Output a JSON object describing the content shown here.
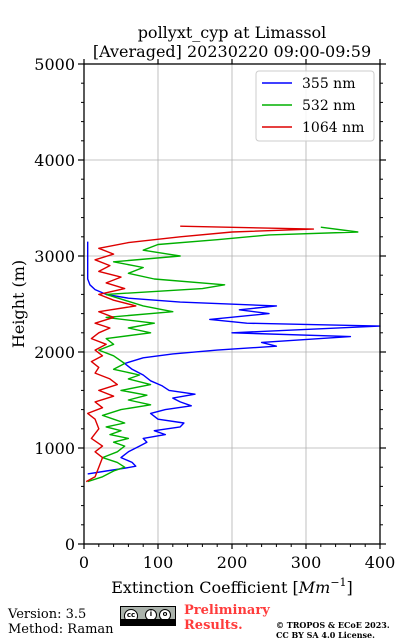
{
  "chart_data": {
    "type": "line",
    "title": "pollyxt_cyp at Limassol",
    "subtitle": "[Averaged] 20230220 09:00-09:59",
    "xlabel": "Extinction Coefficient [",
    "xlabel_unit": "Mm",
    "xlabel_exp": "−1",
    "xlabel_close": "]",
    "ylabel": "Height (m)",
    "xlim": [
      0,
      400
    ],
    "ylim": [
      0,
      5000
    ],
    "x_ticks": [
      "0",
      "100",
      "200",
      "300",
      "400"
    ],
    "y_ticks": [
      "0",
      "1000",
      "2000",
      "3000",
      "4000",
      "5000"
    ],
    "grid": true,
    "legend_position": "top-right",
    "series": [
      {
        "name": "355 nm",
        "color": "#0000ff",
        "points": [
          [
            5,
            730
          ],
          [
            30,
            760
          ],
          [
            55,
            790
          ],
          [
            70,
            810
          ],
          [
            65,
            850
          ],
          [
            50,
            900
          ],
          [
            60,
            960
          ],
          [
            75,
            1020
          ],
          [
            85,
            1060
          ],
          [
            80,
            1100
          ],
          [
            110,
            1140
          ],
          [
            95,
            1180
          ],
          [
            130,
            1220
          ],
          [
            135,
            1260
          ],
          [
            100,
            1300
          ],
          [
            90,
            1360
          ],
          [
            110,
            1400
          ],
          [
            145,
            1440
          ],
          [
            130,
            1480
          ],
          [
            120,
            1520
          ],
          [
            150,
            1560
          ],
          [
            115,
            1600
          ],
          [
            105,
            1650
          ],
          [
            90,
            1700
          ],
          [
            80,
            1760
          ],
          [
            65,
            1820
          ],
          [
            55,
            1880
          ],
          [
            80,
            1940
          ],
          [
            120,
            1980
          ],
          [
            180,
            2020
          ],
          [
            260,
            2060
          ],
          [
            240,
            2100
          ],
          [
            360,
            2160
          ],
          [
            200,
            2200
          ],
          [
            400,
            2270
          ],
          [
            220,
            2300
          ],
          [
            170,
            2340
          ],
          [
            250,
            2400
          ],
          [
            210,
            2440
          ],
          [
            260,
            2480
          ],
          [
            130,
            2520
          ],
          [
            60,
            2560
          ],
          [
            30,
            2600
          ],
          [
            15,
            2650
          ],
          [
            8,
            2700
          ],
          [
            5,
            2760
          ],
          [
            5,
            2850
          ],
          [
            5,
            2950
          ],
          [
            5,
            3050
          ],
          [
            5,
            3150
          ]
        ]
      },
      {
        "name": "532 nm",
        "color": "#00b000",
        "points": [
          [
            5,
            650
          ],
          [
            25,
            700
          ],
          [
            40,
            760
          ],
          [
            55,
            800
          ],
          [
            45,
            850
          ],
          [
            25,
            900
          ],
          [
            45,
            960
          ],
          [
            55,
            1020
          ],
          [
            40,
            1060
          ],
          [
            60,
            1100
          ],
          [
            35,
            1140
          ],
          [
            50,
            1180
          ],
          [
            30,
            1220
          ],
          [
            55,
            1260
          ],
          [
            40,
            1300
          ],
          [
            25,
            1340
          ],
          [
            50,
            1400
          ],
          [
            90,
            1450
          ],
          [
            60,
            1500
          ],
          [
            85,
            1550
          ],
          [
            50,
            1600
          ],
          [
            90,
            1660
          ],
          [
            60,
            1720
          ],
          [
            75,
            1760
          ],
          [
            40,
            1820
          ],
          [
            55,
            1880
          ],
          [
            40,
            1960
          ],
          [
            20,
            2020
          ],
          [
            40,
            2080
          ],
          [
            30,
            2140
          ],
          [
            90,
            2200
          ],
          [
            60,
            2250
          ],
          [
            95,
            2300
          ],
          [
            30,
            2360
          ],
          [
            120,
            2420
          ],
          [
            80,
            2480
          ],
          [
            55,
            2540
          ],
          [
            30,
            2600
          ],
          [
            160,
            2660
          ],
          [
            190,
            2700
          ],
          [
            95,
            2760
          ],
          [
            60,
            2820
          ],
          [
            80,
            2880
          ],
          [
            40,
            2940
          ],
          [
            130,
            3000
          ],
          [
            80,
            3060
          ],
          [
            100,
            3120
          ],
          [
            180,
            3170
          ],
          [
            250,
            3220
          ],
          [
            370,
            3250
          ],
          [
            320,
            3300
          ]
        ]
      },
      {
        "name": "1064 nm",
        "color": "#dd0000",
        "points": [
          [
            3,
            650
          ],
          [
            15,
            700
          ],
          [
            20,
            800
          ],
          [
            25,
            900
          ],
          [
            15,
            960
          ],
          [
            25,
            1020
          ],
          [
            10,
            1100
          ],
          [
            20,
            1200
          ],
          [
            15,
            1300
          ],
          [
            5,
            1360
          ],
          [
            25,
            1420
          ],
          [
            15,
            1480
          ],
          [
            40,
            1540
          ],
          [
            20,
            1600
          ],
          [
            45,
            1660
          ],
          [
            35,
            1720
          ],
          [
            15,
            1780
          ],
          [
            20,
            1840
          ],
          [
            10,
            1900
          ],
          [
            25,
            1960
          ],
          [
            15,
            2020
          ],
          [
            30,
            2080
          ],
          [
            10,
            2140
          ],
          [
            20,
            2200
          ],
          [
            35,
            2250
          ],
          [
            15,
            2300
          ],
          [
            40,
            2360
          ],
          [
            20,
            2420
          ],
          [
            70,
            2480
          ],
          [
            40,
            2540
          ],
          [
            20,
            2600
          ],
          [
            55,
            2660
          ],
          [
            30,
            2720
          ],
          [
            50,
            2780
          ],
          [
            20,
            2840
          ],
          [
            35,
            2900
          ],
          [
            15,
            2960
          ],
          [
            40,
            3020
          ],
          [
            20,
            3080
          ],
          [
            60,
            3140
          ],
          [
            130,
            3200
          ],
          [
            200,
            3250
          ],
          [
            310,
            3280
          ],
          [
            130,
            3310
          ]
        ]
      }
    ]
  },
  "footer": {
    "version": "Version: 3.5",
    "method": "Method: Raman",
    "preliminary_line1": "Preliminary",
    "preliminary_line2": "Results.",
    "copyright_line1": "© TROPOS & ECoE 2023.",
    "copyright_line2": "CC BY SA 4.0 License."
  }
}
